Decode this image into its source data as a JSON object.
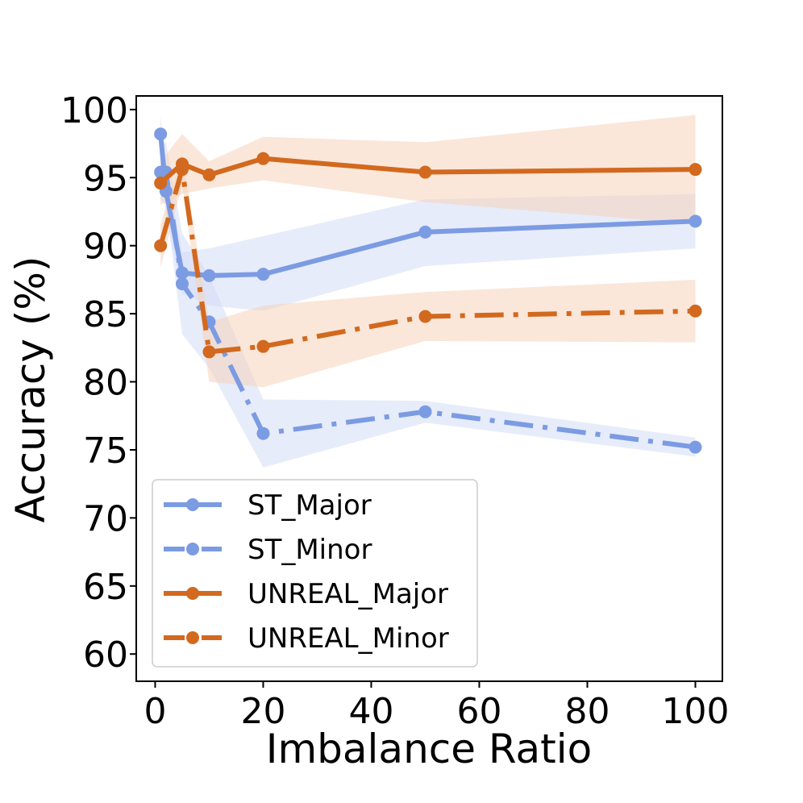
{
  "colors": {
    "st": "#7b9be3",
    "st_band": "#d3ddf6",
    "unreal": "#d2691e",
    "unreal_band": "#f5d3bb"
  },
  "chart_data": {
    "type": "line",
    "title": "",
    "xlabel": "Imbalance Ratio",
    "ylabel": "Accuracy (%)",
    "xlim": [
      -3.5,
      105
    ],
    "ylim": [
      58,
      101
    ],
    "xticks": [
      0,
      20,
      40,
      60,
      80,
      100
    ],
    "xtick_labels": [
      "0",
      "20",
      "40",
      "60",
      "80",
      "100"
    ],
    "yticks": [
      60,
      65,
      70,
      75,
      80,
      85,
      90,
      95,
      100
    ],
    "ytick_labels": [
      "60",
      "65",
      "70",
      "75",
      "80",
      "85",
      "90",
      "95",
      "100"
    ],
    "legend_position": "lower-left",
    "series": [
      {
        "name": "ST_Major",
        "color_key": "st",
        "style": "solid",
        "x": [
          1,
          2,
          5,
          10,
          20,
          50,
          100
        ],
        "y": [
          98.2,
          94.0,
          88.0,
          87.8,
          87.9,
          91.0,
          91.8
        ],
        "lower": [
          96.8,
          92.2,
          86.5,
          85.6,
          85.2,
          88.5,
          89.8
        ],
        "upper": [
          99.6,
          95.8,
          89.5,
          89.8,
          90.7,
          93.4,
          93.8
        ]
      },
      {
        "name": "ST_Minor",
        "color_key": "st",
        "style": "dashdot",
        "x": [
          1,
          2,
          5,
          10,
          20,
          50,
          100
        ],
        "y": [
          95.4,
          95.4,
          87.2,
          84.4,
          76.2,
          77.8,
          75.2
        ],
        "lower": [
          93.4,
          93.0,
          83.5,
          81.0,
          73.7,
          77.0,
          74.5
        ],
        "upper": [
          97.4,
          97.6,
          90.9,
          87.8,
          78.7,
          78.6,
          75.9
        ]
      },
      {
        "name": "UNREAL_Major",
        "color_key": "unreal",
        "style": "solid",
        "x": [
          1,
          5,
          10,
          20,
          50,
          100
        ],
        "y": [
          94.6,
          96.0,
          95.2,
          96.4,
          95.4,
          95.6
        ],
        "lower": [
          93.0,
          93.8,
          94.2,
          94.8,
          93.2,
          91.6
        ],
        "upper": [
          96.2,
          98.2,
          96.2,
          98.0,
          97.6,
          99.6
        ]
      },
      {
        "name": "UNREAL_Minor",
        "color_key": "unreal",
        "style": "dashdot",
        "x": [
          1,
          5,
          10,
          20,
          50,
          100
        ],
        "y": [
          90.0,
          95.6,
          82.2,
          82.6,
          84.8,
          85.2
        ],
        "lower": [
          88.4,
          94.5,
          80.0,
          79.6,
          83.0,
          82.9
        ],
        "upper": [
          91.6,
          96.7,
          84.4,
          85.6,
          86.6,
          87.5
        ]
      }
    ]
  }
}
